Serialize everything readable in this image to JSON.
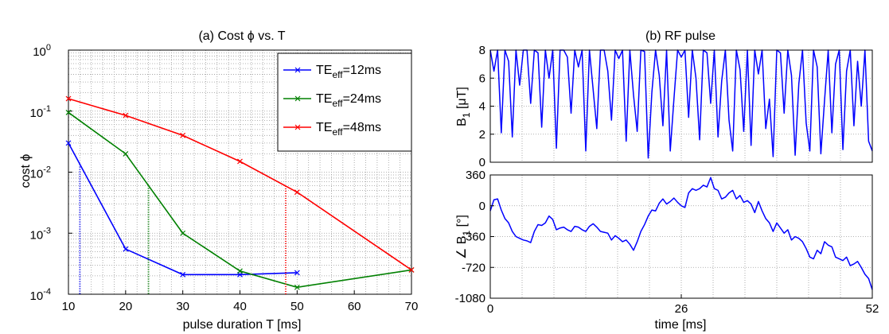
{
  "chart_data": [
    {
      "type": "line",
      "title": "(a) Cost ϕ vs. T",
      "xlabel": "pulse duration T [ms]",
      "ylabel": "cost ϕ",
      "xscale": "linear",
      "yscale": "log",
      "xlim": [
        10,
        70
      ],
      "ylim": [
        0.0001,
        1
      ],
      "grid": "minor-dotted",
      "xticks": [
        "10",
        "20",
        "30",
        "40",
        "50",
        "60",
        "70"
      ],
      "yticks": [
        {
          "base": "10",
          "exp": "0"
        },
        {
          "base": "10",
          "exp": "-1"
        },
        {
          "base": "10",
          "exp": "-2"
        },
        {
          "base": "10",
          "exp": "-3"
        },
        {
          "base": "10",
          "exp": "-4"
        }
      ],
      "legend_position": "top-right",
      "series": [
        {
          "name": "TE_eff=12ms",
          "label_main": "TE",
          "label_sub": "eff",
          "label_tail": "=12ms",
          "color": "#0000ff",
          "x": [
            10,
            20,
            30,
            40,
            50
          ],
          "y": [
            0.03,
            0.00055,
            0.00021,
            0.00021,
            0.000225
          ],
          "marker_x": 12
        },
        {
          "name": "TE_eff=24ms",
          "label_main": "TE",
          "label_sub": "eff",
          "label_tail": "=24ms",
          "color": "#008000",
          "x": [
            10,
            20,
            30,
            40,
            50,
            70
          ],
          "y": [
            0.095,
            0.02,
            0.001,
            0.00024,
            0.00013,
            0.00025
          ],
          "marker_x": 24
        },
        {
          "name": "TE_eff=48ms",
          "label_main": "TE",
          "label_sub": "eff",
          "label_tail": "=48ms",
          "color": "#ff0000",
          "x": [
            10,
            20,
            30,
            40,
            50,
            70
          ],
          "y": [
            0.16,
            0.085,
            0.04,
            0.015,
            0.0047,
            0.00025
          ],
          "marker_x": 48
        }
      ]
    },
    {
      "type": "line",
      "title": "(b) RF pulse",
      "subplots": [
        {
          "ylabel_main": "B",
          "ylabel_sub": "1",
          "ylabel_unit": " [μT]",
          "ylim": [
            0,
            8
          ],
          "yticks": [
            "0",
            "2",
            "4",
            "6",
            "8"
          ],
          "xlim": [
            0,
            52
          ],
          "color": "#0000ff",
          "x": [
            0,
            0.5,
            1,
            1.5,
            2,
            2.5,
            3,
            3.5,
            4,
            4.5,
            5,
            5.5,
            6,
            6.5,
            7,
            7.5,
            8,
            8.5,
            9,
            9.5,
            10,
            10.5,
            11,
            11.5,
            12,
            12.5,
            13,
            13.5,
            14,
            14.5,
            15,
            15.5,
            16,
            16.5,
            17,
            17.5,
            18,
            18.5,
            19,
            19.5,
            20,
            20.5,
            21,
            21.5,
            22,
            22.5,
            23,
            23.5,
            24,
            24.5,
            25,
            25.5,
            26,
            26.5,
            27,
            27.5,
            28,
            28.5,
            29,
            29.5,
            30,
            30.5,
            31,
            31.5,
            32,
            32.5,
            33,
            33.5,
            34,
            34.5,
            35,
            35.5,
            36,
            36.5,
            37,
            37.5,
            38,
            38.5,
            39,
            39.5,
            40,
            40.5,
            41,
            41.5,
            42,
            42.5,
            43,
            43.5,
            44,
            44.5,
            45,
            45.5,
            46,
            46.5,
            47,
            47.5,
            48,
            48.5,
            49,
            49.5,
            50,
            50.5,
            51,
            51.5,
            52
          ],
          "y": [
            8,
            6.5,
            8,
            2.1,
            8,
            7.2,
            1.8,
            8,
            5.5,
            8,
            8,
            4.2,
            8,
            7.8,
            2.5,
            8,
            6,
            8,
            1,
            8,
            8,
            7.5,
            3.5,
            8,
            6.8,
            8,
            0.8,
            8,
            5.2,
            2.4,
            8,
            8,
            6.5,
            3,
            8,
            7.4,
            8,
            1.5,
            8,
            4.8,
            2.2,
            8,
            7.9,
            0.3,
            5,
            8,
            6.2,
            2.6,
            8,
            0.8,
            4.5,
            8,
            7.5,
            8,
            3.2,
            8,
            6,
            1.6,
            8,
            7.8,
            4.2,
            8,
            1.8,
            5.8,
            8,
            3,
            0.8,
            8,
            6.6,
            2.2,
            8,
            1.2,
            8,
            6.3,
            8,
            2.4,
            4.5,
            0.4,
            8,
            7.8,
            3.5,
            8,
            6.2,
            0.5,
            5.6,
            8,
            2.8,
            0.8,
            8,
            6.8,
            0.6,
            4.4,
            8,
            2.1,
            7,
            8,
            0.9,
            6.5,
            8,
            2.6,
            7.2,
            4,
            8,
            1.5,
            0.8
          ]
        },
        {
          "ylabel_main": "∠ B",
          "ylabel_sub": "1",
          "ylabel_unit": " [°]",
          "ylim": [
            -1080,
            360
          ],
          "yticks": [
            "360",
            "0",
            "-360",
            "-720",
            "-1080"
          ],
          "xlim": [
            0,
            52
          ],
          "xticks": [
            "0",
            "26",
            "52"
          ],
          "xlabel": "time [ms]",
          "color": "#0000ff",
          "x": [
            0,
            0.5,
            1,
            1.5,
            2,
            2.5,
            3,
            3.5,
            4,
            4.5,
            5,
            5.5,
            6,
            6.5,
            7,
            7.5,
            8,
            8.5,
            9,
            9.5,
            10,
            10.5,
            11,
            11.5,
            12,
            12.5,
            13,
            13.5,
            14,
            14.5,
            15,
            15.5,
            16,
            16.5,
            17,
            17.5,
            18,
            18.5,
            19,
            19.5,
            20,
            20.5,
            21,
            21.5,
            22,
            22.5,
            23,
            23.5,
            24,
            24.5,
            25,
            25.5,
            26,
            26.5,
            27,
            27.5,
            28,
            28.5,
            29,
            29.5,
            30,
            30.5,
            31,
            31.5,
            32,
            32.5,
            33,
            33.5,
            34,
            34.5,
            35,
            35.5,
            36,
            36.5,
            37,
            37.5,
            38,
            38.5,
            39,
            39.5,
            40,
            40.5,
            41,
            41.5,
            42,
            42.5,
            43,
            43.5,
            44,
            44.5,
            45,
            45.5,
            46,
            46.5,
            47,
            47.5,
            48,
            48.5,
            49,
            49.5,
            50,
            50.5,
            51,
            51.5,
            52
          ],
          "y": [
            -60,
            70,
            80,
            -50,
            -150,
            -200,
            -300,
            -360,
            -380,
            -400,
            -410,
            -430,
            -300,
            -220,
            -230,
            -200,
            -120,
            -160,
            -280,
            -260,
            -250,
            -280,
            -300,
            -240,
            -250,
            -280,
            -300,
            -240,
            -210,
            -250,
            -300,
            -310,
            -320,
            -400,
            -350,
            -380,
            -420,
            -400,
            -450,
            -520,
            -420,
            -300,
            -220,
            -120,
            -50,
            -60,
            30,
            80,
            20,
            50,
            90,
            40,
            0,
            -20,
            150,
            200,
            180,
            200,
            240,
            220,
            330,
            200,
            180,
            80,
            100,
            150,
            180,
            80,
            120,
            40,
            60,
            20,
            -80,
            50,
            -60,
            -150,
            -200,
            -300,
            -200,
            -260,
            -320,
            -280,
            -400,
            -360,
            -380,
            -420,
            -500,
            -600,
            -620,
            -520,
            -560,
            -420,
            -460,
            -480,
            -600,
            -620,
            -640,
            -600,
            -700,
            -680,
            -650,
            -720,
            -800,
            -850,
            -980
          ]
        }
      ]
    }
  ]
}
